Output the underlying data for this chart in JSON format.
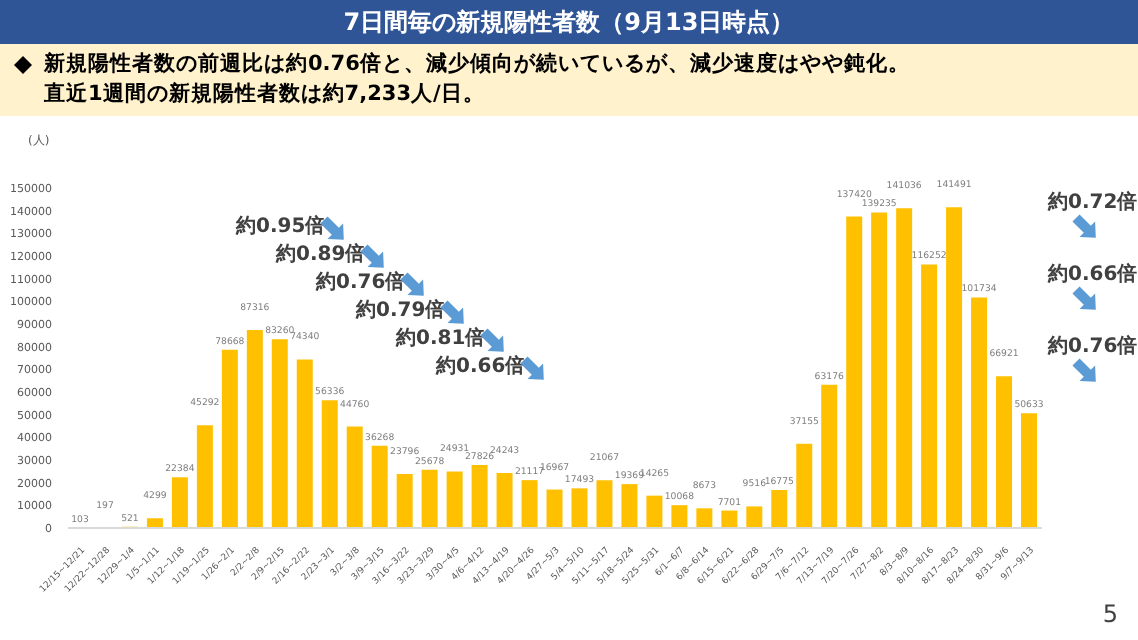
{
  "chart_data": {
    "type": "bar",
    "title": "7日間毎の新規陽性者数（9月13日時点）",
    "subtitle": "新規陽性者数の前週比は約0.76倍と、減少傾向が続いているが、減少速度はやや鈍化。",
    "ylabel": "(人)",
    "categories": [
      "12/15~12/21",
      "12/22~12/28",
      "12/29~1/4",
      "1/5~1/11",
      "1/12~1/18",
      "1/19~1/25",
      "1/26~2/1",
      "2/2~2/8",
      "2/9~2/15",
      "2/16~2/22",
      "2/23~3/1",
      "3/2~3/8",
      "3/9~3/15",
      "3/16~3/22",
      "3/23~3/29",
      "3/30~4/5",
      "4/6~4/12",
      "4/13~4/19",
      "4/20~4/26",
      "4/27~5/3",
      "5/4~5/10",
      "5/11~5/17",
      "5/18~5/24",
      "5/25~5/31",
      "6/1~6/7",
      "6/8~6/14",
      "6/15~6/21",
      "6/22~6/28",
      "6/29~7/5",
      "7/6~7/12",
      "7/13~7/19",
      "7/20~7/26",
      "7/27~8/2",
      "8/3~8/9",
      "8/10~8/16",
      "8/17~8/23",
      "8/24~8/30",
      "8/31~9/6",
      "9/7~9/13"
    ],
    "values": [
      103,
      197,
      521,
      4299,
      22384,
      45292,
      78668,
      87316,
      83260,
      74340,
      56336,
      44760,
      36268,
      23796,
      25678,
      24931,
      27826,
      24243,
      21117,
      16967,
      17493,
      21067,
      19369,
      14265,
      10068,
      8673,
      7701,
      9516,
      16775,
      37155,
      63176,
      137420,
      139235,
      141036,
      116252,
      141491,
      101734,
      66921,
      50633
    ],
    "color": "#ffc000",
    "ylim": [
      0,
      150000
    ],
    "yticks": [
      0,
      10000,
      20000,
      30000,
      40000,
      50000,
      60000,
      70000,
      80000,
      90000,
      100000,
      110000,
      120000,
      130000,
      140000,
      150000
    ],
    "data_labels": true,
    "grid": false,
    "legend": false,
    "annotations": [
      "直近1週間の新規陽性者数は約7,233人/日。",
      "約0.95倍",
      "約0.89倍",
      "約0.76倍",
      "約0.79倍",
      "約0.81倍",
      "約0.66倍",
      "約0.72倍",
      "約0.66倍",
      "約0.76倍",
      "5"
    ]
  }
}
